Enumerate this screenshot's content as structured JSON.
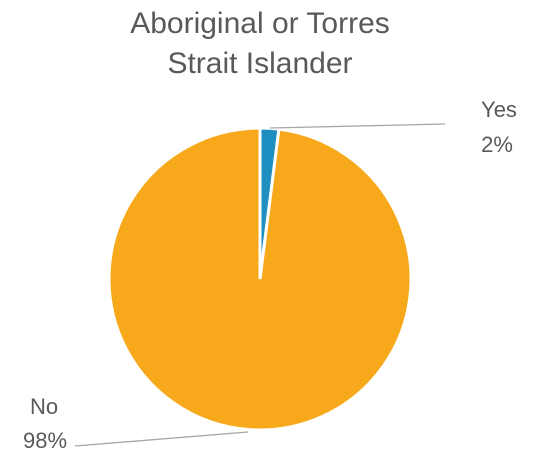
{
  "chart_data": {
    "type": "pie",
    "title_lines": [
      "Aboriginal or Torres",
      "Strait Islander"
    ],
    "categories": [
      "Yes",
      "No"
    ],
    "values": [
      2,
      98
    ],
    "value_labels": [
      "2%",
      "98%"
    ],
    "colors": [
      "#1f8fc1",
      "#f7a91b"
    ],
    "legend": "none"
  }
}
